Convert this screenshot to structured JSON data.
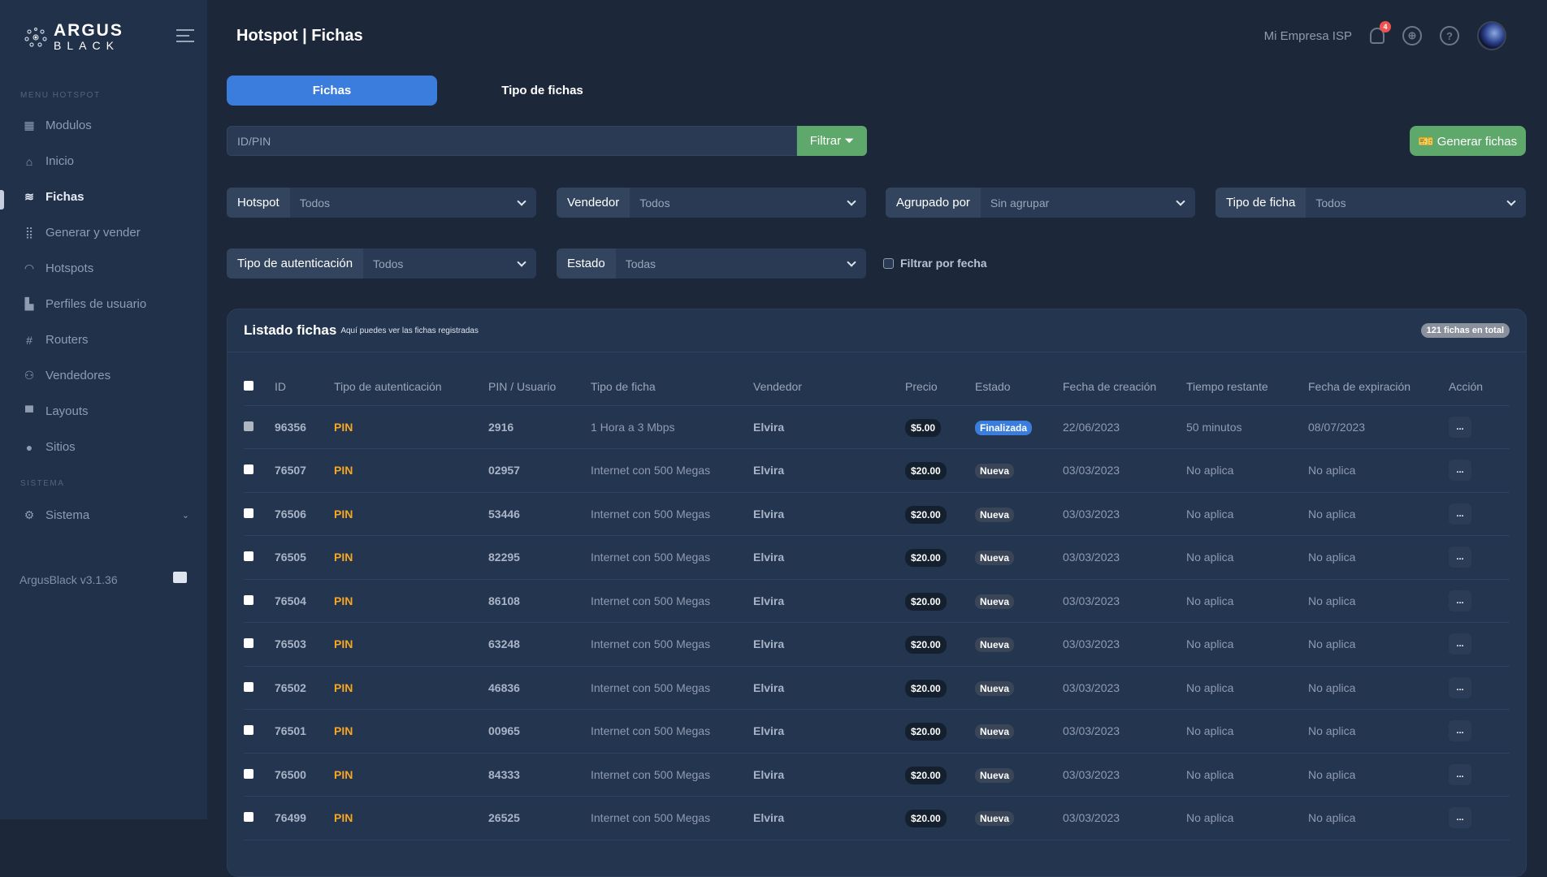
{
  "brand": {
    "line1": "ARGUS",
    "line2": "BLACK"
  },
  "sidebar": {
    "section_menu": "MENU HOTSPOT",
    "items": [
      {
        "label": "Modulos",
        "icon": "grid-icon",
        "glyph": "▦"
      },
      {
        "label": "Inicio",
        "icon": "home-icon",
        "glyph": "⌂"
      },
      {
        "label": "Fichas",
        "icon": "layers-icon",
        "glyph": "≋",
        "active": true
      },
      {
        "label": "Generar y vender",
        "icon": "dots-grid-icon",
        "glyph": "⣿"
      },
      {
        "label": "Hotspots",
        "icon": "wifi-icon",
        "glyph": "◠"
      },
      {
        "label": "Perfiles de usuario",
        "icon": "profiles-icon",
        "glyph": "▙"
      },
      {
        "label": "Routers",
        "icon": "hash-icon",
        "glyph": "#"
      },
      {
        "label": "Vendedores",
        "icon": "users-icon",
        "glyph": "⚇"
      },
      {
        "label": "Layouts",
        "icon": "layout-icon",
        "glyph": "▀"
      },
      {
        "label": "Sitios",
        "icon": "map-pin-icon",
        "glyph": "●"
      }
    ],
    "section_system": "SISTEMA",
    "system": {
      "label": "Sistema",
      "icon": "gear-icon",
      "glyph": "⚙"
    },
    "version": "ArgusBlack v3.1.36"
  },
  "header": {
    "title": "Hotspot | Fichas",
    "org": "Mi Empresa ISP",
    "notifications": "4"
  },
  "tabs": [
    {
      "label": "Fichas",
      "active": true
    },
    {
      "label": "Tipo de fichas"
    }
  ],
  "search": {
    "placeholder": "ID/PIN",
    "filter_label": "Filtrar",
    "generate_label": "Generar fichas"
  },
  "filters": [
    {
      "label": "Hotspot",
      "value": "Todos"
    },
    {
      "label": "Vendedor",
      "value": "Todos"
    },
    {
      "label": "Agrupado por",
      "value": "Sin agrupar"
    },
    {
      "label": "Tipo de ficha",
      "value": "Todos"
    },
    {
      "label": "Tipo de autenticación",
      "value": "Todos"
    },
    {
      "label": "Estado",
      "value": "Todas"
    }
  ],
  "date_filter": "Filtrar por fecha",
  "list": {
    "title": "Listado fichas",
    "subtitle": "Aquí puedes ver las fichas registradas",
    "total": "121 fichas en total",
    "columns": [
      "ID",
      "Tipo de autenticación",
      "PIN / Usuario",
      "Tipo de ficha",
      "Vendedor",
      "Precio",
      "Estado",
      "Fecha de creación",
      "Tiempo restante",
      "Fecha de expiración",
      "Acción"
    ],
    "rows": [
      [
        "96356",
        "PIN",
        "2916",
        "1 Hora a 3 Mbps",
        "Elvira",
        "$5.00",
        "Finalizada",
        "22/06/2023",
        "50 minutos",
        "08/07/2023"
      ],
      [
        "76507",
        "PIN",
        "02957",
        "Internet con 500 Megas",
        "Elvira",
        "$20.00",
        "Nueva",
        "03/03/2023",
        "No aplica",
        "No aplica"
      ],
      [
        "76506",
        "PIN",
        "53446",
        "Internet con 500 Megas",
        "Elvira",
        "$20.00",
        "Nueva",
        "03/03/2023",
        "No aplica",
        "No aplica"
      ],
      [
        "76505",
        "PIN",
        "82295",
        "Internet con 500 Megas",
        "Elvira",
        "$20.00",
        "Nueva",
        "03/03/2023",
        "No aplica",
        "No aplica"
      ],
      [
        "76504",
        "PIN",
        "86108",
        "Internet con 500 Megas",
        "Elvira",
        "$20.00",
        "Nueva",
        "03/03/2023",
        "No aplica",
        "No aplica"
      ],
      [
        "76503",
        "PIN",
        "63248",
        "Internet con 500 Megas",
        "Elvira",
        "$20.00",
        "Nueva",
        "03/03/2023",
        "No aplica",
        "No aplica"
      ],
      [
        "76502",
        "PIN",
        "46836",
        "Internet con 500 Megas",
        "Elvira",
        "$20.00",
        "Nueva",
        "03/03/2023",
        "No aplica",
        "No aplica"
      ],
      [
        "76501",
        "PIN",
        "00965",
        "Internet con 500 Megas",
        "Elvira",
        "$20.00",
        "Nueva",
        "03/03/2023",
        "No aplica",
        "No aplica"
      ],
      [
        "76500",
        "PIN",
        "84333",
        "Internet con 500 Megas",
        "Elvira",
        "$20.00",
        "Nueva",
        "03/03/2023",
        "No aplica",
        "No aplica"
      ],
      [
        "76499",
        "PIN",
        "26525",
        "Internet con 500 Megas",
        "Elvira",
        "$20.00",
        "Nueva",
        "03/03/2023",
        "No aplica",
        "No aplica"
      ]
    ],
    "action_label": "..."
  },
  "colors": {
    "primary": "#3b7ddd",
    "success": "#5fa86b",
    "pin": "#f5a623",
    "badge": "#ef5350"
  }
}
